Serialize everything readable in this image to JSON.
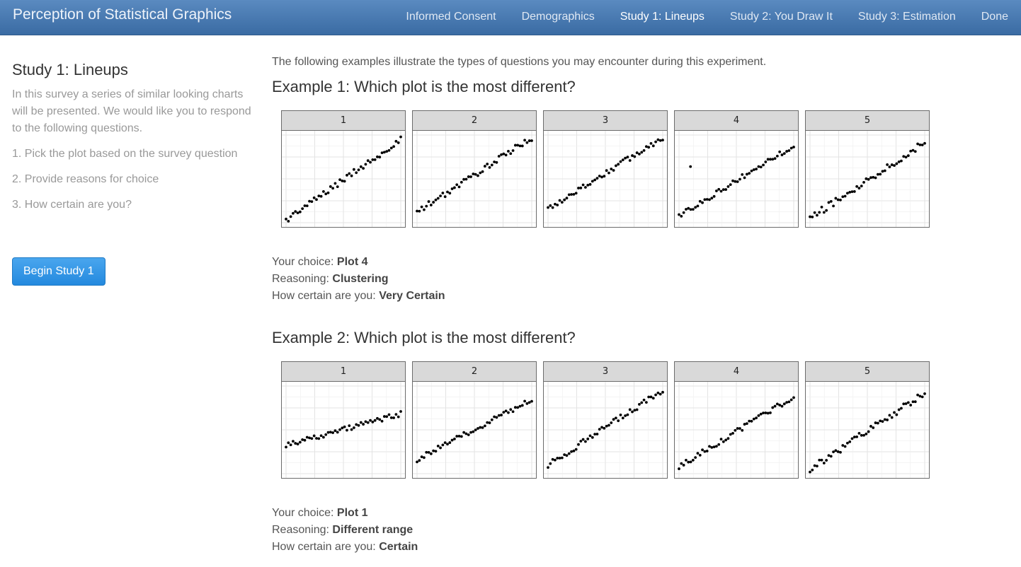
{
  "app": {
    "title": "Perception of Statistical Graphics"
  },
  "nav": {
    "items": [
      {
        "label": "Informed Consent",
        "active": false
      },
      {
        "label": "Demographics",
        "active": false
      },
      {
        "label": "Study 1: Lineups",
        "active": true
      },
      {
        "label": "Study 2: You Draw It",
        "active": false
      },
      {
        "label": "Study 3: Estimation",
        "active": false
      },
      {
        "label": "Done",
        "active": false
      }
    ]
  },
  "sidebar": {
    "title": "Study 1: Lineups",
    "intro": "In this survey a series of similar looking charts will be presented. We would like you to respond to the following questions.",
    "steps": [
      "1. Pick the plot based on the survey question",
      "2. Provide reasons for choice",
      "3. How certain are you?"
    ],
    "button_label": "Begin Study 1"
  },
  "main": {
    "intro": "The following examples illustrate the types of questions you may encounter during this experiment.",
    "examples": [
      {
        "title": "Example 1: Which plot is the most different?",
        "answers": {
          "choice_label": "Your choice: ",
          "choice": "Plot 4",
          "reasoning_label": "Reasoning: ",
          "reasoning": "Clustering",
          "certainty_label": "How certain are you: ",
          "certainty": "Very Certain"
        }
      },
      {
        "title": "Example 2: Which plot is the most different?",
        "answers": {
          "choice_label": "Your choice: ",
          "choice": "Plot 1",
          "reasoning_label": "Reasoning: ",
          "reasoning": "Different range",
          "certainty_label": "How certain are you: ",
          "certainty": "Certain"
        }
      }
    ]
  },
  "chart_data": [
    {
      "type": "scatter",
      "panels": [
        {
          "label": "1",
          "y_start": 0.03,
          "y_end": 0.95,
          "noise": 0.035,
          "outlier": null
        },
        {
          "label": "2",
          "y_start": 0.12,
          "y_end": 0.97,
          "noise": 0.035,
          "outlier": null
        },
        {
          "label": "3",
          "y_start": 0.16,
          "y_end": 0.97,
          "noise": 0.035,
          "outlier": null
        },
        {
          "label": "4",
          "y_start": 0.08,
          "y_end": 0.88,
          "noise": 0.03,
          "outlier": [
            0.1,
            0.64
          ]
        },
        {
          "label": "5",
          "y_start": 0.05,
          "y_end": 0.92,
          "noise": 0.04,
          "outlier": null
        }
      ],
      "xlim": [
        0,
        1
      ],
      "ylim": [
        0,
        1
      ],
      "grid": true,
      "points_per_panel": 50
    },
    {
      "type": "scatter",
      "panels": [
        {
          "label": "1",
          "y_start": 0.33,
          "y_end": 0.68,
          "noise": 0.03,
          "outlier": null
        },
        {
          "label": "2",
          "y_start": 0.16,
          "y_end": 0.85,
          "noise": 0.03,
          "outlier": null
        },
        {
          "label": "3",
          "y_start": 0.1,
          "y_end": 0.95,
          "noise": 0.035,
          "outlier": null
        },
        {
          "label": "4",
          "y_start": 0.08,
          "y_end": 0.88,
          "noise": 0.03,
          "outlier": null
        },
        {
          "label": "5",
          "y_start": 0.05,
          "y_end": 0.92,
          "noise": 0.04,
          "outlier": null
        }
      ],
      "xlim": [
        0,
        1
      ],
      "ylim": [
        0,
        1
      ],
      "grid": true,
      "points_per_panel": 50
    }
  ]
}
